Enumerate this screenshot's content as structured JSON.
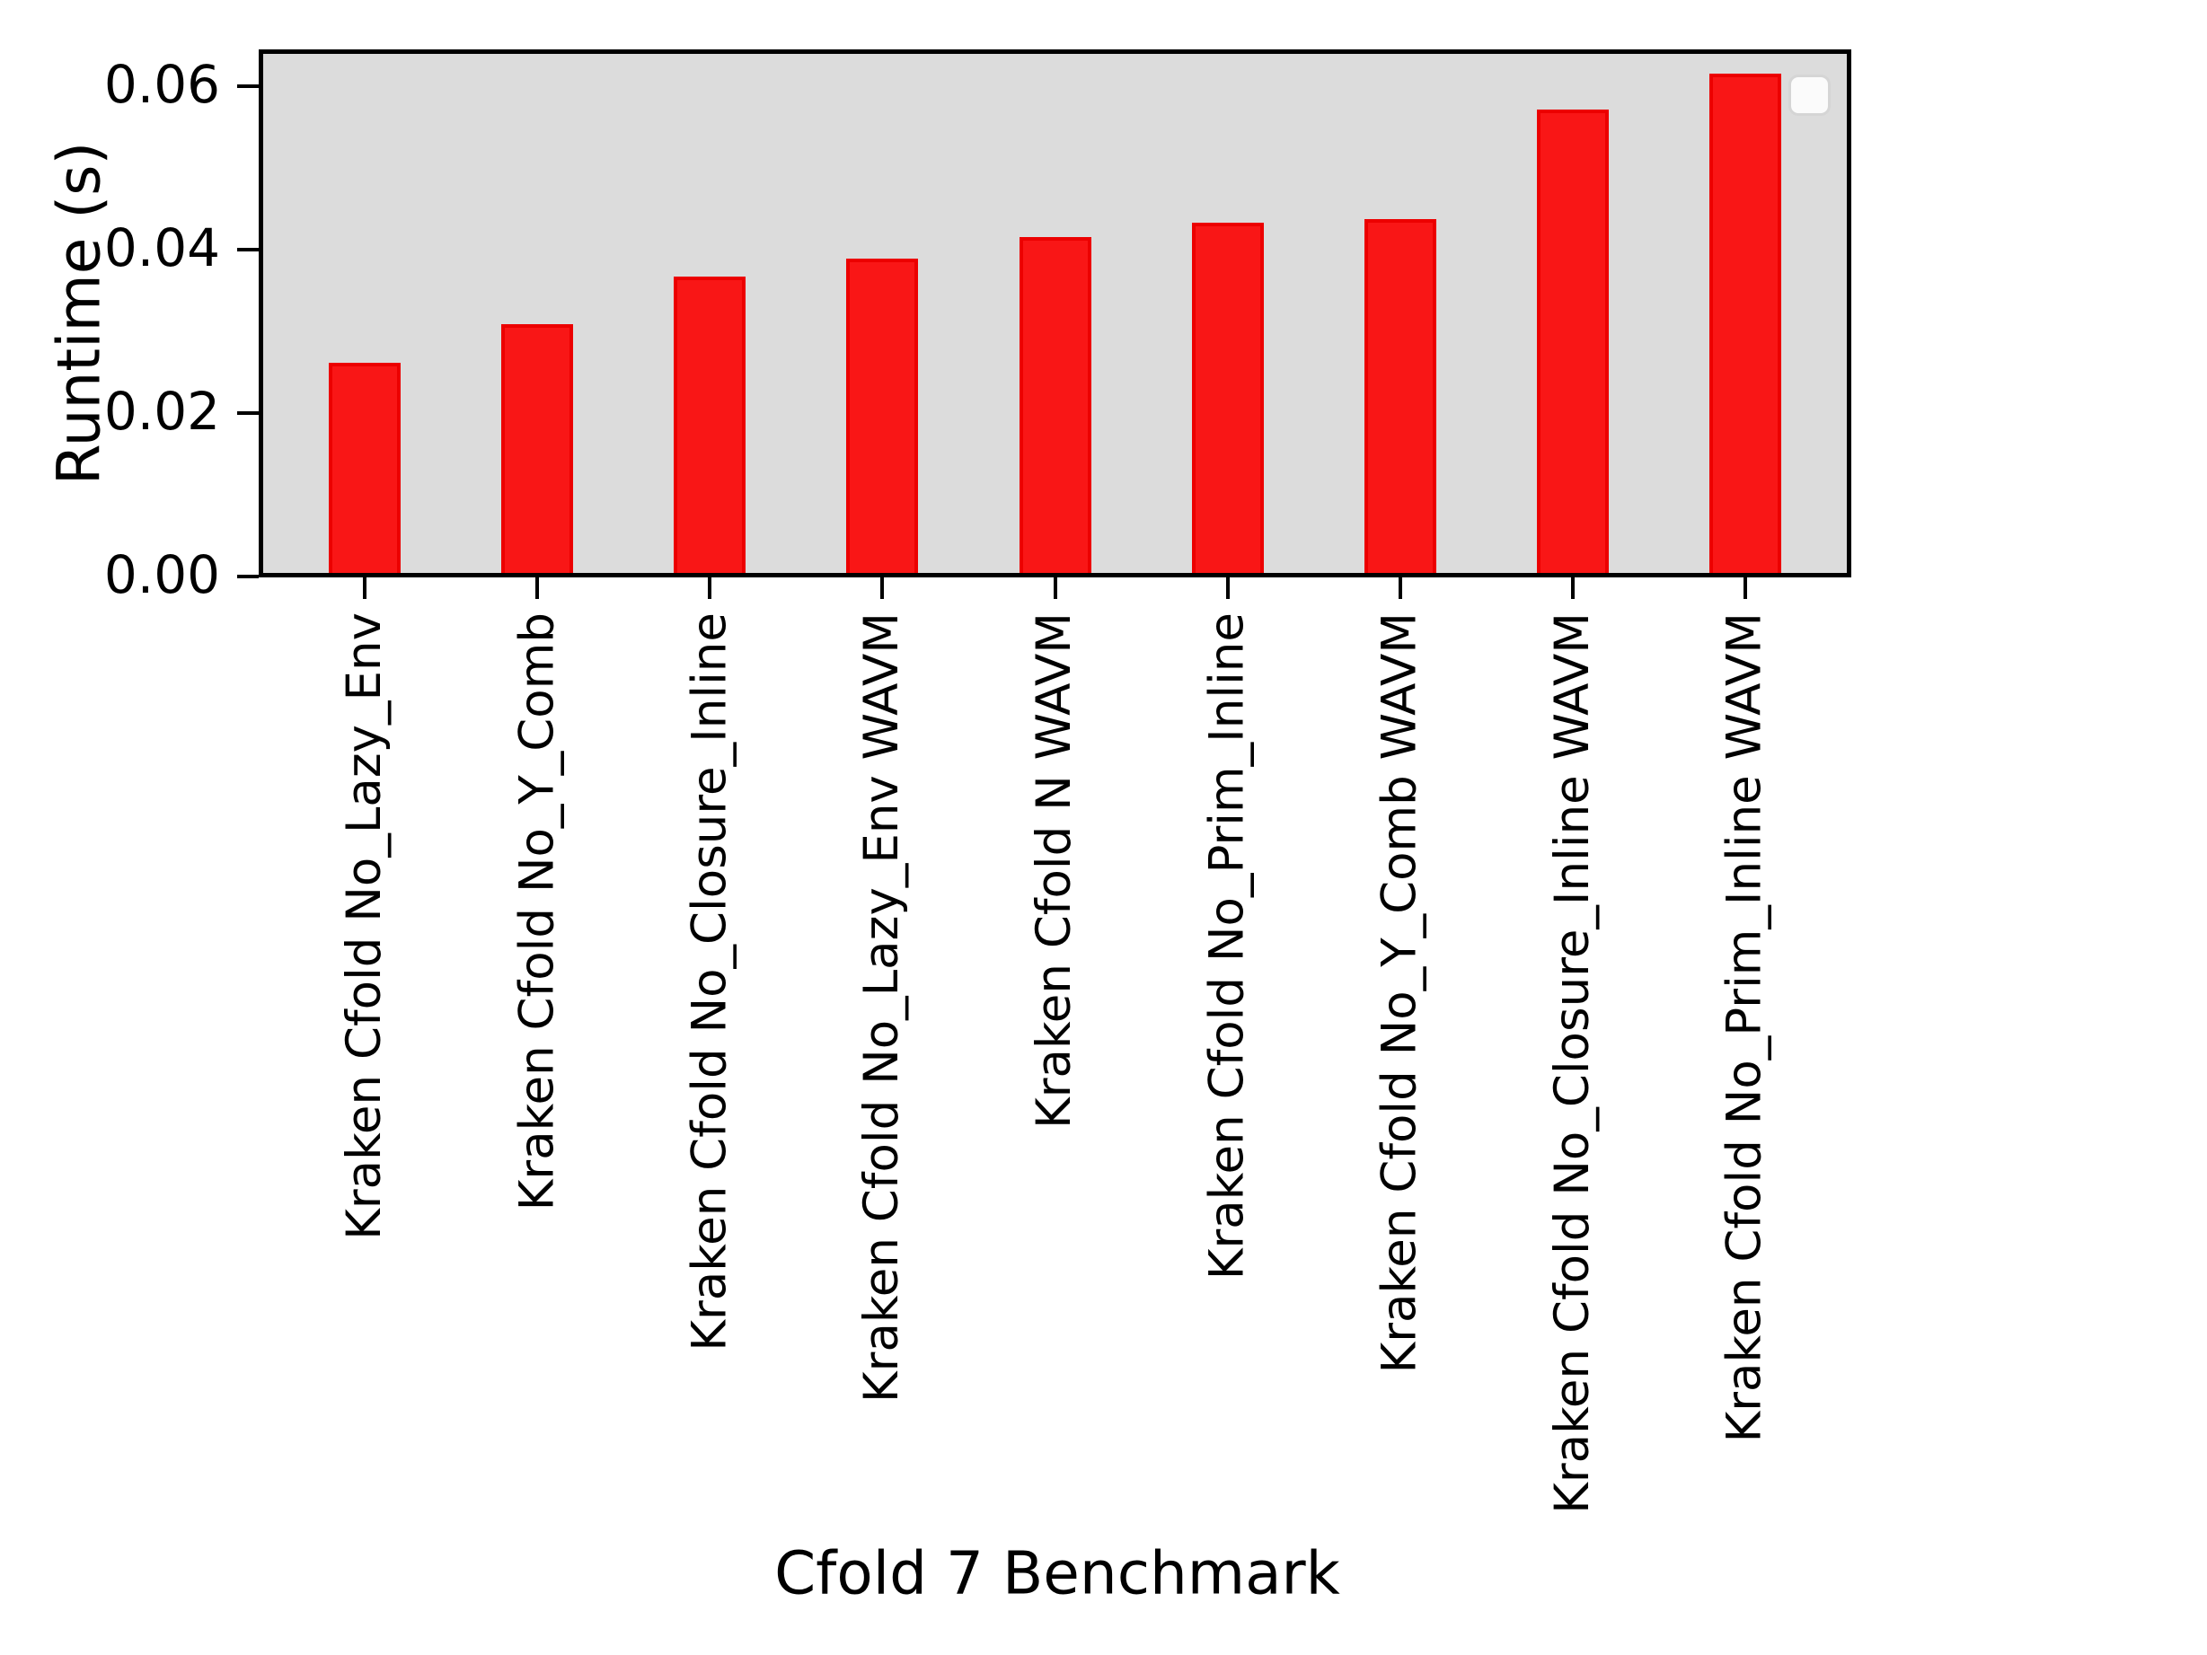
{
  "chart_data": {
    "type": "bar",
    "title": "",
    "xlabel": "Cfold 7 Benchmark",
    "ylabel": "Runtime (s)",
    "categories": [
      "Kraken Cfold No_Lazy_Env",
      "Kraken Cfold No_Y_Comb",
      "Kraken Cfold No_Closure_Inline",
      "Kraken Cfold No_Lazy_Env WAVM",
      "Kraken Cfold N WAVM",
      "Kraken Cfold No_Prim_Inline",
      "Kraken Cfold No_Y_Comb WAVM",
      "Kraken Cfold No_Closure_Inline WAVM",
      "Kraken Cfold No_Prim_Inline WAVM"
    ],
    "values": [
      0.0262,
      0.0309,
      0.0367,
      0.0389,
      0.0415,
      0.0433,
      0.0437,
      0.0571,
      0.0615
    ],
    "ylim": [
      0,
      0.0646
    ],
    "yticks": [
      0,
      0.02,
      0.04,
      0.06
    ],
    "ytick_labels": [
      "0.00",
      "0.02",
      "0.04",
      "0.06"
    ],
    "xtick_rotation_deg": 90,
    "grid": false,
    "legend": {
      "visible": true,
      "entries": [],
      "position": "upper-right"
    },
    "colors": {
      "bar_fill": "#f91616",
      "bar_edge": "#ec0000",
      "plot_background": "#dcdcdc",
      "figure_background": "#ffffff",
      "axis": "#000000",
      "text": "#000000"
    }
  }
}
